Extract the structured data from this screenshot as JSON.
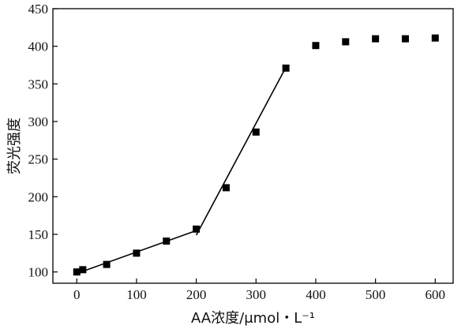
{
  "chart_data": {
    "type": "scatter",
    "xlabel": "AA浓度/μmol・L⁻¹",
    "ylabel": "荧光强度",
    "xlim": [
      -40,
      630
    ],
    "ylim": [
      85,
      450
    ],
    "xticks": [
      0,
      100,
      200,
      300,
      400,
      500,
      600
    ],
    "yticks": [
      100,
      150,
      200,
      250,
      300,
      350,
      400,
      450
    ],
    "grid": false,
    "series": [
      {
        "x": [
          0,
          10,
          50,
          100,
          150,
          200,
          250,
          300,
          350,
          400,
          450,
          500,
          550,
          600
        ],
        "y": [
          100,
          103,
          110,
          125,
          141,
          157,
          212,
          286,
          371,
          401,
          406,
          410,
          410,
          411
        ],
        "marker": "square",
        "color": "#000000"
      }
    ],
    "fit_lines": [
      {
        "x": [
          0,
          200
        ],
        "y": [
          98,
          155
        ]
      },
      {
        "x": [
          200,
          350
        ],
        "y": [
          149,
          372
        ]
      }
    ]
  }
}
